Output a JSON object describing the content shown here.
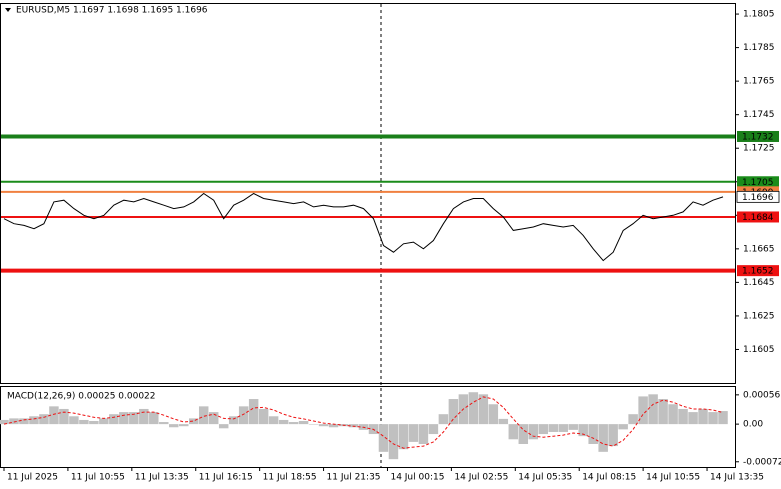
{
  "chart_data": [
    {
      "type": "line",
      "title": "EURUSD,M5  1.1697 1.1698 1.1695 1.1696",
      "xlim": [
        -0.3,
        73.2
      ],
      "ylim": [
        1.1585,
        1.1811
      ],
      "yticks": [
        1.1805,
        1.1785,
        1.1765,
        1.1745,
        1.1725,
        1.1705,
        1.1685,
        1.1665,
        1.1645,
        1.1625,
        1.1605
      ],
      "grid": false,
      "series": [
        {
          "color": "#000000",
          "values": [
            1.1683,
            1.168,
            1.1679,
            1.1677,
            1.168,
            1.1693,
            1.1694,
            1.1689,
            1.1685,
            1.1683,
            1.1685,
            1.1691,
            1.1694,
            1.1693,
            1.1695,
            1.1693,
            1.1691,
            1.1689,
            1.169,
            1.1693,
            1.1698,
            1.1694,
            1.1683,
            1.1691,
            1.1694,
            1.1698,
            1.1695,
            1.1694,
            1.1693,
            1.1692,
            1.1693,
            1.169,
            1.1691,
            1.169,
            1.169,
            1.1691,
            1.1689,
            1.1683,
            1.1667,
            1.1663,
            1.1668,
            1.1669,
            1.1665,
            1.167,
            1.168,
            1.1689,
            1.1693,
            1.1695,
            1.1695,
            1.1689,
            1.1684,
            1.1676,
            1.1677,
            1.1678,
            1.168,
            1.1679,
            1.1678,
            1.1679,
            1.1673,
            1.1665,
            1.1658,
            1.1663,
            1.1676,
            1.168,
            1.1685,
            1.1683,
            1.1684,
            1.1685,
            1.1687,
            1.1693,
            1.1691,
            1.1694,
            1.1696
          ]
        }
      ],
      "levels": [
        {
          "value": 1.1732,
          "color": "#1a7f1a",
          "thick": true
        },
        {
          "value": 1.1705,
          "color": "#1a8c1a",
          "thick": false
        },
        {
          "value": 1.1699,
          "color": "#f08040",
          "thick": false
        },
        {
          "value": 1.1684,
          "color": "#ee1111",
          "thick": false
        },
        {
          "value": 1.1652,
          "color": "#ee1111",
          "thick": true
        }
      ],
      "current_price": 1.1696
    },
    {
      "type": "bar",
      "title": "MACD(12,26,9) 0.00025 0.00022",
      "xlim": [
        -0.3,
        73.2
      ],
      "ylim": [
        -0.00082,
        0.00071
      ],
      "yticks": [
        0.00056,
        {
          "value": 0,
          "label": "0.00"
        },
        -0.00072
      ],
      "xticks": [
        {
          "value": 0,
          "label": "11 Jul 2025"
        },
        {
          "value": 6.4,
          "label": "11 Jul 10:55"
        },
        {
          "value": 12.8,
          "label": "11 Jul 13:35"
        },
        {
          "value": 19.2,
          "label": "11 Jul 16:15"
        },
        {
          "value": 25.6,
          "label": "11 Jul 18:55"
        },
        {
          "value": 32,
          "label": "11 Jul 21:35"
        },
        {
          "value": 38.4,
          "label": "14 Jul 00:15"
        },
        {
          "value": 44.8,
          "label": "14 Jul 02:55"
        },
        {
          "value": 51.2,
          "label": "14 Jul 05:35"
        },
        {
          "value": 57.6,
          "label": "14 Jul 08:15"
        },
        {
          "value": 64,
          "label": "14 Jul 10:55"
        },
        {
          "value": 70.4,
          "label": "14 Jul 13:35"
        }
      ],
      "series": [
        {
          "type": "bar",
          "color": "#c0c0c0",
          "values": [
            8e-05,
            0.00011,
            0.00011,
            0.00015,
            0.00019,
            0.00034,
            0.00029,
            0.00015,
            8e-05,
            6e-05,
            0.00011,
            0.00019,
            0.00023,
            0.00023,
            0.00029,
            0.00023,
            4e-05,
            -6e-05,
            -4e-05,
            0.00011,
            0.00034,
            0.00023,
            -8e-05,
            0.00015,
            0.00034,
            0.00048,
            0.00029,
            0.00015,
            8e-05,
            4e-05,
            6e-05,
            0,
            -4e-05,
            -6e-05,
            -4e-05,
            -6e-05,
            -0.00011,
            -0.00019,
            -0.00053,
            -0.00067,
            -0.00048,
            -0.00034,
            -0.00038,
            -0.00019,
            0.00019,
            0.00048,
            0.00057,
            0.00061,
            0.00057,
            0.00038,
            0.0001,
            -0.00029,
            -0.00038,
            -0.00029,
            -0.00019,
            -0.00015,
            -0.00015,
            -0.00011,
            -0.00023,
            -0.00038,
            -0.00053,
            -0.00042,
            -0.0001,
            0.00019,
            0.00053,
            0.00057,
            0.00048,
            0.00038,
            0.00029,
            0.00023,
            0.00029,
            0.00023,
            0.00025
          ]
        },
        {
          "type": "line",
          "color": "#ee1111",
          "dashed": true,
          "values": [
            0,
            4e-05,
            8e-05,
            0.0001,
            0.00013,
            0.00019,
            0.00023,
            0.00021,
            0.00017,
            0.00013,
            0.00011,
            0.00013,
            0.00017,
            0.00019,
            0.00023,
            0.00023,
            0.00017,
            0.0001,
            4e-05,
            6e-05,
            0.00015,
            0.00019,
            0.00011,
            0.0001,
            0.00019,
            0.00031,
            0.00032,
            0.00027,
            0.00019,
            0.00013,
            0.0001,
            6e-05,
            2e-05,
            0,
            -2e-05,
            -4e-05,
            -6e-05,
            -0.0001,
            -0.00023,
            -0.00038,
            -0.00046,
            -0.00044,
            -0.00042,
            -0.00034,
            -0.00015,
            0.0001,
            0.00029,
            0.00042,
            0.00052,
            0.00048,
            0.00032,
            0.0001,
            -0.00011,
            -0.00023,
            -0.00025,
            -0.00023,
            -0.00021,
            -0.00017,
            -0.00019,
            -0.00027,
            -0.00038,
            -0.00042,
            -0.00031,
            -0.0001,
            0.00019,
            0.00038,
            0.00046,
            0.00042,
            0.00034,
            0.00029,
            0.00029,
            0.00027,
            0.00022
          ]
        }
      ]
    }
  ]
}
